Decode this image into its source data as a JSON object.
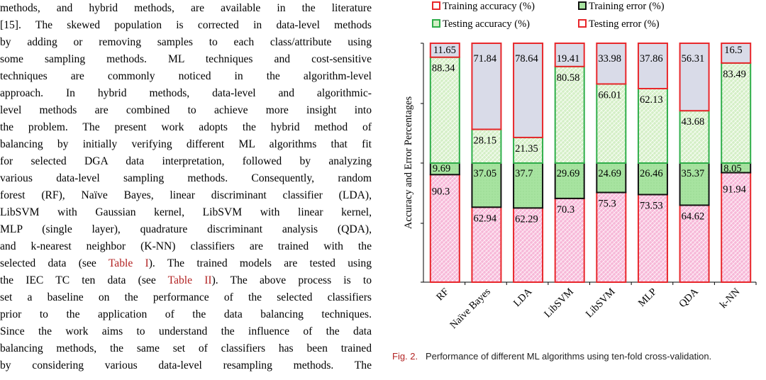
{
  "body_text": {
    "lines": [
      "methods, and hybrid methods, are available in the literature",
      "[15]. The skewed population is corrected in data-level methods",
      "by adding or removing samples to each class/attribute using",
      "some sampling methods. ML techniques and cost-sensitive",
      "techniques are commonly noticed in the algorithm-level",
      "approach. In hybrid methods, data-level and algorithmic-",
      "level methods are combined to achieve more insight into",
      "the problem. The present work adopts the hybrid method of",
      "balancing by initially verifying different ML algorithms that fit",
      "for selected DGA data interpretation, followed by analyzing",
      "various data-level sampling methods. Consequently, random",
      "forest (RF), Naïve Bayes, linear discriminant classifier (LDA),",
      "LibSVM with Gaussian kernel, LibSVM with linear kernel,",
      "MLP (single layer), quadrature discriminant analysis (QDA),",
      "and k-nearest neighbor (K-NN) classifiers are trained with the",
      "selected data (see Table I). The trained models are tested using",
      "the IEC TC ten data (see Table II). The above process is to",
      "set a baseline on the performance of the selected classifiers",
      "prior to the application of the data balancing techniques.",
      "Since the work aims to understand the influence of the data",
      "balancing methods, the same set of classifiers has been trained",
      "by considering various data-level resampling methods. The"
    ],
    "refs": {
      "table1": "Table I",
      "table2": "Table II"
    }
  },
  "figure": {
    "label": "Fig. 2.",
    "caption": "Performance of different ML algorithms using ten-fold cross-validation."
  },
  "chart_data": {
    "type": "bar",
    "stacked": true,
    "ylabel": "Accuracy and Error Percentages",
    "categories": [
      "RF",
      "Naïve Bayes",
      "LDA",
      "LibSVM",
      "LibSVM",
      "MLP",
      "QDA",
      "k-NN"
    ],
    "legend": {
      "placement": "top",
      "entries": [
        "Training accuracy (%)",
        "Training error (%)",
        "Testing accuracy (%)",
        "Testing error (%)"
      ]
    },
    "series": [
      {
        "name": "Training accuracy (%)",
        "panel": "training",
        "values": [
          90.3,
          62.94,
          62.29,
          70.3,
          75.3,
          73.53,
          64.62,
          91.94
        ]
      },
      {
        "name": "Training error (%)",
        "panel": "training",
        "values": [
          9.69,
          37.05,
          37.7,
          29.69,
          24.69,
          26.46,
          35.37,
          8.05
        ]
      },
      {
        "name": "Testing accuracy (%)",
        "panel": "testing",
        "values": [
          88.34,
          28.15,
          21.35,
          80.58,
          66.01,
          62.13,
          43.68,
          83.49
        ]
      },
      {
        "name": "Testing error (%)",
        "panel": "testing",
        "values": [
          11.65,
          71.84,
          78.64,
          19.41,
          33.98,
          37.86,
          56.31,
          16.5
        ]
      }
    ],
    "panel_range": [
      0,
      100
    ],
    "colors": {
      "training_accuracy_fill": "#f7b8d8",
      "training_accuracy_stroke": "#e8272b",
      "training_error_fill": "#a7e3a0",
      "training_error_stroke": "#111111",
      "testing_accuracy_fill": "#d4efc6",
      "testing_accuracy_stroke": "#2fae4a",
      "testing_error_fill": "#d9dbe8",
      "testing_error_stroke": "#e8272b"
    }
  }
}
